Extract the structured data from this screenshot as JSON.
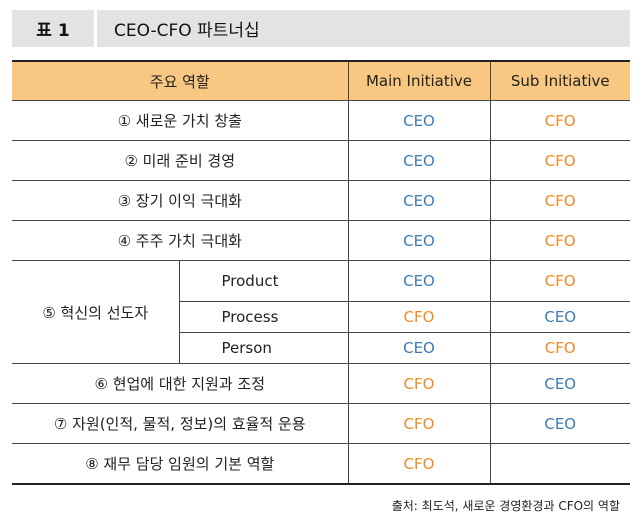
{
  "title": {
    "label": "표 1",
    "text": "CEO-CFO 파트너십"
  },
  "table": {
    "headers": [
      "주요 역할",
      "Main Initiative",
      "Sub Initiative"
    ],
    "rows": [
      {
        "role": "① 새로운 가치 창출",
        "main": "CEO",
        "sub": "CFO"
      },
      {
        "role": "② 미래 준비 경영",
        "main": "CEO",
        "sub": "CFO"
      },
      {
        "role": "③ 장기 이익 극대화",
        "main": "CEO",
        "sub": "CFO"
      },
      {
        "role": "④ 주주 가치 극대화",
        "main": "CEO",
        "sub": "CFO"
      },
      {
        "role": "⑤ 혁신의 선도자",
        "subrows": [
          {
            "label": "Product",
            "main": "CEO",
            "sub": "CFO"
          },
          {
            "label": "Process",
            "main": "CFO",
            "sub": "CEO"
          },
          {
            "label": "Person",
            "main": "CEO",
            "sub": "CFO"
          }
        ]
      },
      {
        "role": "⑥ 현업에 대한 지원과 조정",
        "main": "CFO",
        "sub": "CEO"
      },
      {
        "role": "⑦ 자원(인적, 물적, 정보)의 효율적 운용",
        "main": "CFO",
        "sub": "CEO"
      },
      {
        "role": "⑧ 재무 담당 임원의 기본 역할",
        "main": "CFO",
        "sub": ""
      }
    ]
  },
  "source": "출처: 최도석, 새로운 경영환경과 CFO의 역할",
  "colors": {
    "CEO": "#3d7ab3",
    "CFO": "#f08a24",
    "header_bg": "#f8c782",
    "title_bg": "#e3e3e3"
  }
}
